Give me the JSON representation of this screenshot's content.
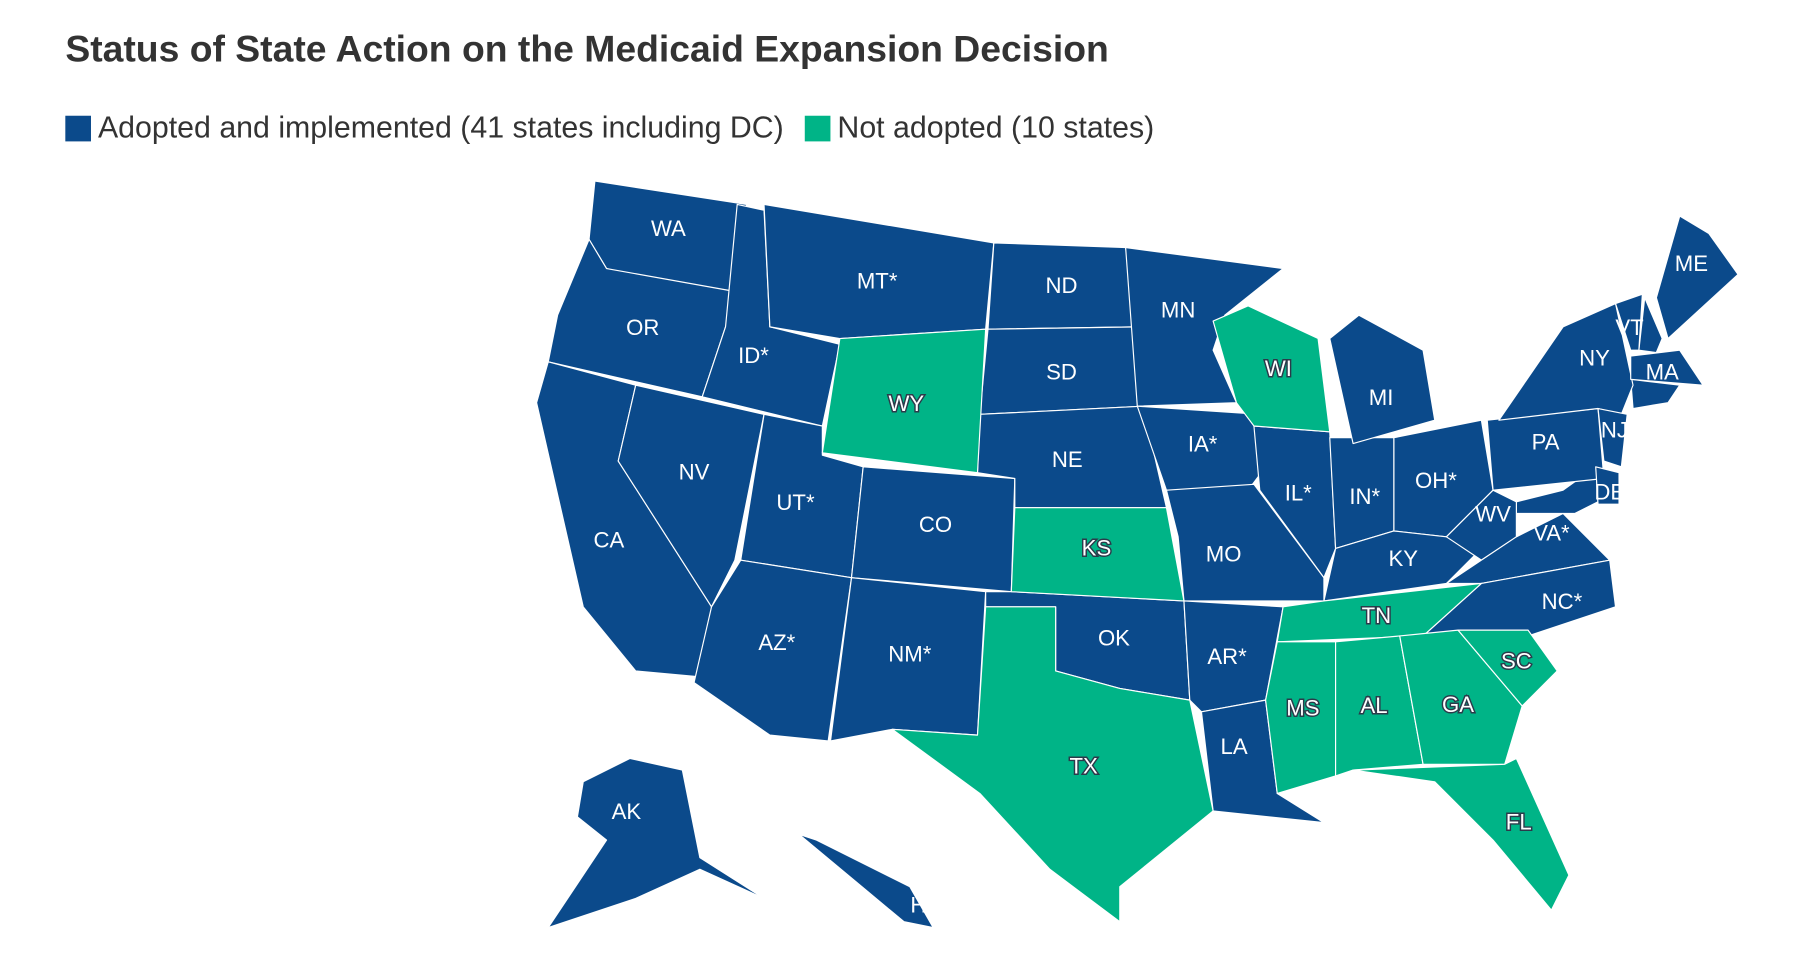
{
  "title": "Status of State Action on the Medicaid Expansion Decision",
  "legend": [
    {
      "name": "Adopted and implemented (41 states including DC)",
      "color": "#0b4a8b",
      "states": [
        "WA",
        "OR",
        "CA",
        "NV",
        "ID*",
        "MT*",
        "UT*",
        "AZ*",
        "CO",
        "NM*",
        "ND",
        "SD",
        "NE",
        "OK",
        "MN",
        "IA*",
        "MO",
        "AR*",
        "LA",
        "IL*",
        "IN*",
        "MI",
        "OH*",
        "KY",
        "WV",
        "VA*",
        "NC*",
        "PA",
        "NY",
        "NJ",
        "DE",
        "VT",
        "ME",
        "MA",
        "AK",
        "HI"
      ]
    },
    {
      "name": "Not adopted (10 states)",
      "color": "#00b487",
      "states": [
        "WY",
        "WI",
        "KS",
        "TX",
        "TN",
        "MS",
        "AL",
        "GA",
        "SC",
        "FL"
      ]
    }
  ]
}
